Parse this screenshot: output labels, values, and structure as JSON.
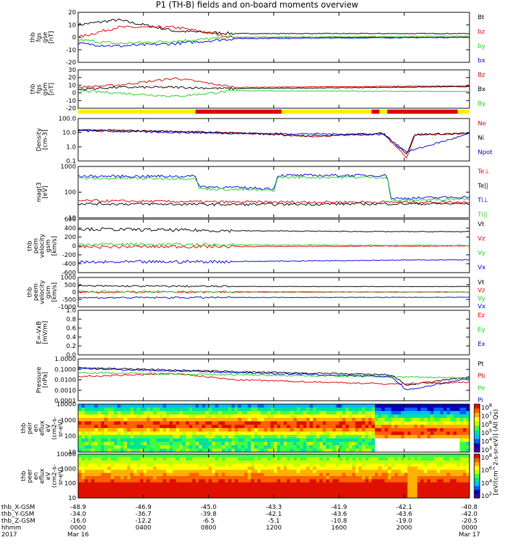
{
  "title": "P1 (TH-B) fields and on-board moments overview",
  "colors": {
    "black": "#000000",
    "red": "#e00000",
    "green": "#20d020",
    "blue": "#0000e0",
    "yellow": "#ffee00",
    "orange": "#ff8c00"
  },
  "chart_data": {
    "type": "line",
    "x_ticks": [
      {
        "frac": 0.0,
        "hhmm": "0000",
        "date": "Mar 16",
        "X": "-48.9",
        "Y": "-34.0",
        "Z": "-16.0"
      },
      {
        "frac": 0.1667,
        "hhmm": "0400",
        "date": "",
        "X": "-46.9",
        "Y": "-36.7",
        "Z": "-12.2"
      },
      {
        "frac": 0.3333,
        "hhmm": "0800",
        "date": "",
        "X": "-45.0",
        "Y": "-39.8",
        "Z": "-6.5"
      },
      {
        "frac": 0.5,
        "hhmm": "1200",
        "date": "",
        "X": "-43.3",
        "Y": "-42.1",
        "Z": "-5.1"
      },
      {
        "frac": 0.6667,
        "hhmm": "1600",
        "date": "",
        "X": "-41.9",
        "Y": "-43.6",
        "Z": "-10.8"
      },
      {
        "frac": 0.8333,
        "hhmm": "2000",
        "date": "",
        "X": "-42.1",
        "Y": "-43.6",
        "Z": "-19.0"
      },
      {
        "frac": 1.0,
        "hhmm": "0000",
        "date": "Mar 17",
        "X": "-40.8",
        "Y": "-42.0",
        "Z": "-20.5"
      }
    ],
    "row_labels": [
      "thb_X-GSM",
      "thb_Y-GSM",
      "thb_Z-GSM",
      "hhmm",
      "2017"
    ],
    "panels": [
      {
        "ylabel": [
          "thb",
          "fgs",
          "gse",
          "[nT]"
        ],
        "ticks": [
          "20",
          "10",
          "0",
          "-10",
          "-20"
        ],
        "log": false,
        "range": [
          -20,
          20
        ],
        "series": [
          {
            "name": "Bt",
            "color": "black",
            "seg": [
              [
                0,
                10
              ],
              [
                0.1,
                14
              ],
              [
                0.25,
                5
              ],
              [
                0.4,
                3
              ],
              [
                1,
                3
              ]
            ]
          },
          {
            "name": "bz",
            "color": "red",
            "seg": [
              [
                0,
                0
              ],
              [
                0.1,
                8
              ],
              [
                0.25,
                8
              ],
              [
                0.4,
                0
              ],
              [
                1,
                0
              ]
            ]
          },
          {
            "name": "by",
            "color": "green",
            "seg": [
              [
                0,
                -2
              ],
              [
                0.1,
                -5
              ],
              [
                0.25,
                -3
              ],
              [
                0.4,
                0
              ],
              [
                1,
                1
              ]
            ]
          },
          {
            "name": "bx",
            "color": "blue",
            "seg": [
              [
                0,
                -5
              ],
              [
                0.1,
                -7
              ],
              [
                0.25,
                -5
              ],
              [
                0.4,
                -1
              ],
              [
                1,
                0
              ]
            ]
          }
        ]
      },
      {
        "ylabel": [
          "thb",
          "fgs",
          "gsm",
          "[nT]"
        ],
        "ticks": [
          "30",
          "20",
          "10",
          "0",
          "-10",
          "-20"
        ],
        "log": false,
        "range": [
          -25,
          30
        ],
        "series": [
          {
            "name": "Bz",
            "color": "red",
            "seg": [
              [
                0,
                5
              ],
              [
                0.1,
                8
              ],
              [
                0.25,
                18
              ],
              [
                0.4,
                5
              ],
              [
                1,
                7
              ]
            ]
          },
          {
            "name": "Bx",
            "color": "black",
            "seg": [
              [
                0,
                2
              ],
              [
                0.1,
                5
              ],
              [
                0.25,
                5
              ],
              [
                0.4,
                3
              ],
              [
                1,
                6
              ]
            ]
          },
          {
            "name": "By",
            "color": "green",
            "seg": [
              [
                0,
                0
              ],
              [
                0.1,
                -3
              ],
              [
                0.25,
                -8
              ],
              [
                0.4,
                0
              ],
              [
                1,
                -1
              ]
            ]
          }
        ]
      },
      {
        "ylabel": [
          "Density",
          "[cm-3]"
        ],
        "ticks": [
          "100.0",
          "10.0",
          "1.0",
          "0.1"
        ],
        "log": true,
        "range": [
          0.05,
          200
        ],
        "series": [
          {
            "name": "Ne",
            "color": "red",
            "seg": [
              [
                0,
                20
              ],
              [
                0.25,
                15
              ],
              [
                0.4,
                12
              ],
              [
                0.6,
                6
              ],
              [
                0.78,
                10
              ],
              [
                0.84,
                0.1
              ],
              [
                0.86,
                8
              ],
              [
                1,
                10
              ]
            ]
          },
          {
            "name": "Ni",
            "color": "black",
            "seg": [
              [
                0,
                22
              ],
              [
                0.25,
                16
              ],
              [
                0.4,
                12
              ],
              [
                0.6,
                7
              ],
              [
                0.78,
                11
              ],
              [
                0.84,
                0.2
              ],
              [
                0.86,
                9
              ],
              [
                1,
                11
              ]
            ]
          },
          {
            "name": "Npot",
            "color": "blue",
            "seg": [
              [
                0,
                18
              ],
              [
                0.4,
                11
              ],
              [
                0.78,
                9
              ],
              [
                0.84,
                0.3
              ],
              [
                1,
                10
              ]
            ]
          }
        ]
      },
      {
        "ylabel": [
          "magt3",
          "[eV]"
        ],
        "ticks": [
          "1000",
          "100",
          "10"
        ],
        "log": true,
        "range": [
          3,
          3000
        ],
        "series": [
          {
            "name": "Te⊥",
            "color": "red",
            "seg": [
              [
                0,
                30
              ],
              [
                0.4,
                25
              ],
              [
                0.8,
                25
              ],
              [
                1,
                25
              ]
            ]
          },
          {
            "name": "Te||",
            "color": "black",
            "seg": [
              [
                0,
                20
              ],
              [
                0.4,
                18
              ],
              [
                0.8,
                20
              ],
              [
                1,
                20
              ]
            ]
          },
          {
            "name": "Ti⊥",
            "color": "blue",
            "seg": [
              [
                0,
                800
              ],
              [
                0.3,
                800
              ],
              [
                0.31,
                200
              ],
              [
                0.5,
                150
              ],
              [
                0.51,
                900
              ],
              [
                0.79,
                900
              ],
              [
                0.8,
                40
              ],
              [
                1,
                50
              ]
            ]
          },
          {
            "name": "Ti||",
            "color": "green",
            "seg": [
              [
                0,
                600
              ],
              [
                0.3,
                600
              ],
              [
                0.31,
                150
              ],
              [
                0.5,
                120
              ],
              [
                0.51,
                700
              ],
              [
                0.79,
                700
              ],
              [
                0.8,
                30
              ],
              [
                1,
                40
              ]
            ]
          }
        ]
      },
      {
        "ylabel": [
          "thb",
          "peim",
          "velocity",
          "gsm",
          "[km/s]"
        ],
        "ticks": [
          "600",
          "400",
          "200",
          "0",
          "-200",
          "-400",
          "-600"
        ],
        "log": false,
        "range": [
          -600,
          600
        ],
        "series": [
          {
            "name": "Vt",
            "color": "black",
            "seg": [
              [
                0,
                380
              ],
              [
                0.4,
                340
              ],
              [
                0.8,
                320
              ],
              [
                1,
                320
              ]
            ]
          },
          {
            "name": "Vz",
            "color": "red",
            "seg": [
              [
                0,
                -20
              ],
              [
                0.5,
                -10
              ],
              [
                1,
                0
              ]
            ]
          },
          {
            "name": "Vy",
            "color": "green",
            "seg": [
              [
                0,
                40
              ],
              [
                0.5,
                20
              ],
              [
                1,
                10
              ]
            ]
          },
          {
            "name": "Vx",
            "color": "blue",
            "seg": [
              [
                0,
                -370
              ],
              [
                0.4,
                -350
              ],
              [
                0.8,
                -320
              ],
              [
                1,
                -310
              ]
            ]
          }
        ]
      },
      {
        "ylabel": [
          "thb",
          "peem",
          "velocity",
          "gsm",
          "[km/s]"
        ],
        "ticks": [
          "1000",
          "500",
          "0",
          "-500",
          "-1000"
        ],
        "log": false,
        "range": [
          -1000,
          1000
        ],
        "series": [
          {
            "name": "Vt",
            "color": "black",
            "seg": [
              [
                0,
                420
              ],
              [
                0.5,
                380
              ],
              [
                1,
                380
              ]
            ]
          },
          {
            "name": "Vz",
            "color": "red",
            "seg": [
              [
                0,
                0
              ],
              [
                1,
                0
              ]
            ]
          },
          {
            "name": "Vy",
            "color": "green",
            "seg": [
              [
                0,
                40
              ],
              [
                1,
                20
              ]
            ]
          },
          {
            "name": "Vx",
            "color": "blue",
            "seg": [
              [
                0,
                -380
              ],
              [
                0.5,
                -360
              ],
              [
                1,
                -350
              ]
            ]
          }
        ]
      },
      {
        "ylabel": [
          "E=-VxB",
          "[mV/m]"
        ],
        "ticks": [
          "1.0",
          "0.8",
          "0.6",
          "0.4",
          "0.2",
          "0.0"
        ],
        "log": false,
        "range": [
          0,
          1
        ],
        "series": [
          {
            "name": "Ez",
            "color": "red",
            "seg": []
          },
          {
            "name": "Ey",
            "color": "green",
            "seg": []
          },
          {
            "name": "Ex",
            "color": "blue",
            "seg": []
          }
        ]
      },
      {
        "ylabel": [
          "Pressure",
          "[nPa]"
        ],
        "ticks": [
          "1.0000",
          "0.1000",
          "0.0100",
          "0.0010",
          "0.0001"
        ],
        "log": true,
        "range": [
          0.0001,
          1
        ],
        "series": [
          {
            "name": "Pt",
            "color": "black",
            "seg": [
              [
                0,
                0.15
              ],
              [
                0.4,
                0.06
              ],
              [
                0.8,
                0.03
              ],
              [
                0.84,
                0.003
              ],
              [
                1,
                0.02
              ]
            ]
          },
          {
            "name": "Pb",
            "color": "red",
            "seg": [
              [
                0,
                0.02
              ],
              [
                0.25,
                0.04
              ],
              [
                0.4,
                0.01
              ],
              [
                0.8,
                0.004
              ],
              [
                1,
                0.006
              ]
            ]
          },
          {
            "name": "Pe",
            "color": "green",
            "seg": [
              [
                0,
                0.05
              ],
              [
                0.4,
                0.03
              ],
              [
                0.8,
                0.02
              ],
              [
                1,
                0.015
              ]
            ]
          },
          {
            "name": "Pi",
            "color": "blue",
            "seg": [
              [
                0,
                0.12
              ],
              [
                0.4,
                0.05
              ],
              [
                0.8,
                0.02
              ],
              [
                0.84,
                0.001
              ],
              [
                1,
                0.015
              ]
            ]
          }
        ]
      },
      {
        "ylabel": [
          "thb",
          "peir",
          "en",
          "eflux",
          "eV",
          "(cm2-s-",
          "sr-eV)"
        ],
        "ticks": [
          "10000",
          "1000",
          "100",
          "10"
        ],
        "log": true,
        "spectro": true,
        "colorbar": [
          "10^8",
          "10^7",
          "10^6",
          "10^5",
          "10^4",
          "10^3"
        ],
        "cb_label": "[eV/(cm^2-s-sr-eV)] (All Qs)"
      },
      {
        "ylabel": [
          "thb",
          "peer",
          "en",
          "eflux",
          "eV",
          "(cm2-s-",
          "sr-eV)"
        ],
        "ticks": [
          "10000",
          "1000",
          "100",
          "10"
        ],
        "log": true,
        "spectro": true,
        "colorbar": [
          "10^8",
          "10^6",
          "10^4",
          "10^2"
        ],
        "cb_label": ""
      }
    ]
  }
}
